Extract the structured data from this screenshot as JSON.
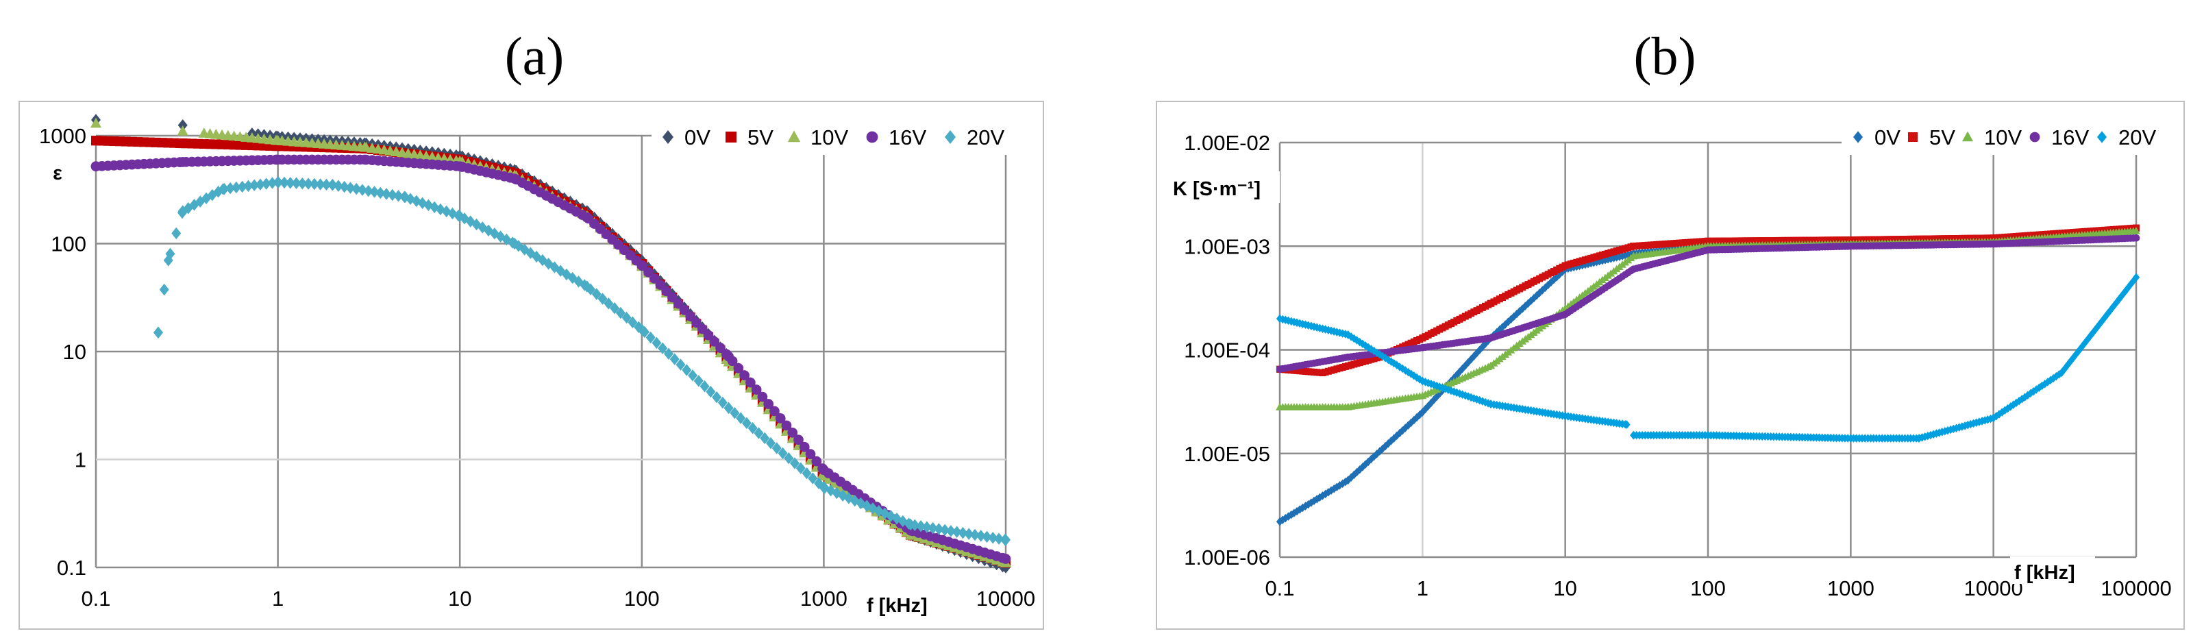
{
  "chart_data": [
    {
      "panel": "(a)",
      "type": "scatter",
      "xscale": "log",
      "yscale": "log",
      "xlim": [
        0.1,
        10000
      ],
      "ylim": [
        0.1,
        1000
      ],
      "xticks": [
        "0.1",
        "1",
        "10",
        "100",
        "1000",
        "10000"
      ],
      "yticks": [
        "0.1",
        "1",
        "10",
        "100",
        "1000"
      ],
      "xlabel": "f [kHz]",
      "ylabel": "ε",
      "grid": true,
      "legend_position": "top-right",
      "series": [
        {
          "name": "0V",
          "marker": "diamond",
          "color": "#3d4f6b",
          "x": [
            0.1,
            0.3,
            1,
            3,
            10,
            20,
            50,
            100,
            300,
            1000,
            3000,
            10000
          ],
          "y": [
            1400,
            1250,
            980,
            850,
            650,
            480,
            200,
            70,
            9,
            0.75,
            0.2,
            0.1
          ]
        },
        {
          "name": "5V",
          "marker": "square",
          "color": "#c00000",
          "x": [
            0.1,
            0.3,
            1,
            3,
            10,
            20,
            50,
            100,
            300,
            1000,
            3000,
            10000
          ],
          "y": [
            900,
            850,
            800,
            760,
            600,
            450,
            185,
            65,
            8.5,
            0.72,
            0.2,
            0.11
          ]
        },
        {
          "name": "10V",
          "marker": "triangle",
          "color": "#9bbb59",
          "x": [
            0.1,
            0.3,
            1,
            3,
            10,
            20,
            50,
            100,
            300,
            1000,
            3000,
            10000
          ],
          "y": [
            1300,
            1100,
            900,
            780,
            580,
            430,
            180,
            62,
            8,
            0.7,
            0.2,
            0.11
          ]
        },
        {
          "name": "16V",
          "marker": "circle",
          "color": "#7030a0",
          "x": [
            0.1,
            0.3,
            1,
            3,
            10,
            20,
            50,
            100,
            300,
            1000,
            3000,
            10000
          ],
          "y": [
            520,
            570,
            600,
            600,
            520,
            400,
            175,
            63,
            9,
            0.8,
            0.22,
            0.12
          ]
        },
        {
          "name": "20V",
          "marker": "diamond",
          "color": "#4bacc6",
          "x": [
            0.22,
            0.25,
            0.3,
            0.5,
            1,
            2,
            5,
            10,
            20,
            50,
            100,
            300,
            1000,
            3000,
            10000
          ],
          "y": [
            15,
            70,
            200,
            320,
            370,
            350,
            270,
            180,
            100,
            40,
            16,
            3,
            0.55,
            0.25,
            0.18
          ]
        }
      ]
    },
    {
      "panel": "(b)",
      "type": "scatter",
      "xscale": "log",
      "yscale": "log",
      "xlim": [
        0.1,
        100000
      ],
      "ylim": [
        1e-06,
        0.01
      ],
      "xticks": [
        "0.1",
        "1",
        "10",
        "100",
        "1000",
        "10000",
        "100000"
      ],
      "yticks": [
        "1.00E-06",
        "1.00E-05",
        "1.00E-04",
        "1.00E-03",
        "1.00E-02"
      ],
      "xlabel": "f [kHz]",
      "ylabel": "K [S·m⁻¹]",
      "grid": true,
      "legend_position": "top-right",
      "series": [
        {
          "name": "0V",
          "marker": "diamond",
          "color": "#1f6fb5",
          "x": [
            0.1,
            0.3,
            1,
            3,
            10,
            30,
            100,
            1000,
            10000,
            100000
          ],
          "y": [
            2.2e-06,
            5.5e-06,
            2.5e-05,
            0.00013,
            0.0006,
            0.00085,
            0.001,
            0.00108,
            0.00112,
            0.0014
          ]
        },
        {
          "name": "5V",
          "marker": "square",
          "color": "#d01010",
          "x": [
            0.1,
            0.2,
            0.5,
            1,
            3,
            10,
            30,
            100,
            1000,
            10000,
            100000
          ],
          "y": [
            6.5e-05,
            6e-05,
            8.5e-05,
            0.00013,
            0.00028,
            0.00065,
            0.001,
            0.00112,
            0.00115,
            0.0012,
            0.0015
          ]
        },
        {
          "name": "10V",
          "marker": "triangle",
          "color": "#7ab648",
          "x": [
            0.1,
            0.3,
            1,
            3,
            10,
            30,
            100,
            1000,
            10000,
            100000
          ],
          "y": [
            2.8e-05,
            2.8e-05,
            3.6e-05,
            7e-05,
            0.00025,
            0.0008,
            0.001,
            0.00105,
            0.0011,
            0.0014
          ]
        },
        {
          "name": "16V",
          "marker": "circle",
          "color": "#7030a0",
          "x": [
            0.1,
            0.3,
            1,
            3,
            10,
            30,
            100,
            1000,
            10000,
            100000
          ],
          "y": [
            6.5e-05,
            8.5e-05,
            0.000105,
            0.00013,
            0.00022,
            0.0006,
            0.00092,
            0.001,
            0.00105,
            0.0012
          ]
        },
        {
          "name": "20V",
          "marker": "diamond",
          "color": "#00a0e0",
          "x": [
            0.1,
            0.3,
            1,
            3,
            10,
            27,
            30,
            100,
            1000,
            3000,
            10000,
            30000,
            100000
          ],
          "y": [
            0.0002,
            0.00014,
            5e-05,
            3e-05,
            2.3e-05,
            1.9e-05,
            1.5e-05,
            1.5e-05,
            1.4e-05,
            1.4e-05,
            2.2e-05,
            6e-05,
            0.0005
          ]
        }
      ]
    }
  ]
}
